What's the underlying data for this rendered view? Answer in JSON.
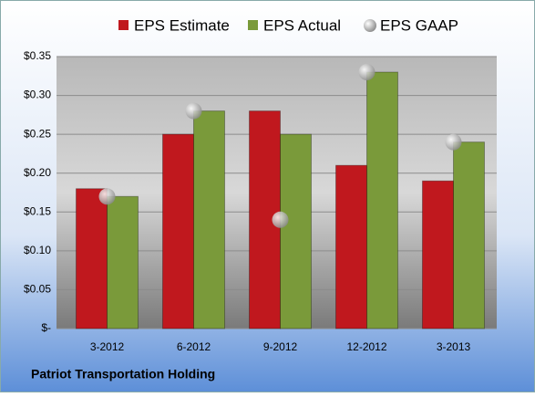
{
  "chart_data": {
    "type": "bar",
    "title": "Patriot Transportation Holding",
    "categories": [
      "3-2012",
      "6-2012",
      "9-2012",
      "12-2012",
      "3-2013"
    ],
    "series": [
      {
        "name": "EPS Estimate",
        "color": "#c0181e",
        "values": [
          0.18,
          0.25,
          0.28,
          0.21,
          0.19
        ]
      },
      {
        "name": "EPS Actual",
        "color": "#7a9a3a",
        "values": [
          0.17,
          0.28,
          0.25,
          0.33,
          0.24
        ]
      },
      {
        "name": "EPS GAAP",
        "color": "#a8a8a8",
        "values": [
          0.17,
          0.28,
          0.14,
          0.33,
          0.24
        ]
      }
    ],
    "ylim": [
      0,
      0.35
    ],
    "yticks": [
      {
        "value": 0,
        "label": "$-"
      },
      {
        "value": 0.05,
        "label": "$0.05"
      },
      {
        "value": 0.1,
        "label": "$0.10"
      },
      {
        "value": 0.15,
        "label": "$0.15"
      },
      {
        "value": 0.2,
        "label": "$0.20"
      },
      {
        "value": 0.25,
        "label": "$0.25"
      },
      {
        "value": 0.3,
        "label": "$0.30"
      },
      {
        "value": 0.35,
        "label": "$0.35"
      }
    ],
    "grid": true,
    "legend": "top"
  }
}
